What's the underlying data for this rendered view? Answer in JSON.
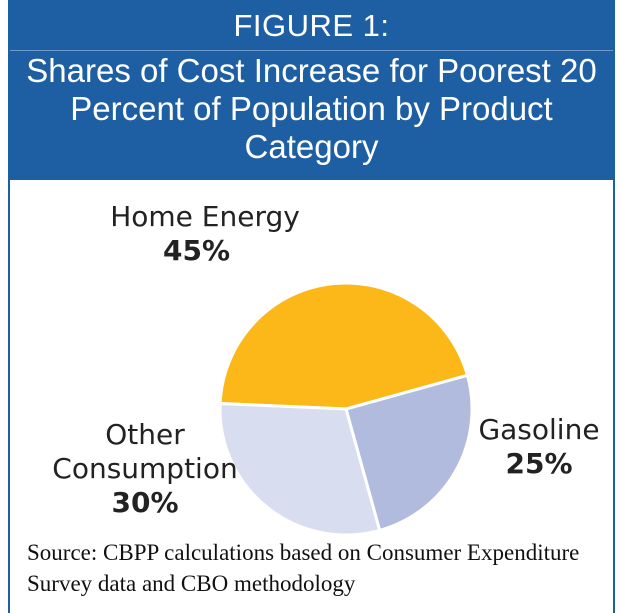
{
  "figure_label": "FIGURE 1:",
  "title": "Shares of Cost Increase for Poorest 20 Percent of Population by Product Category",
  "source": "Source: CBPP calculations based on Consumer Expenditure Survey data and CBO methodology",
  "colors": {
    "header": "#1e5fa3",
    "home_energy": "#fbb818",
    "gasoline": "#b0bbde",
    "other_consumption": "#d9ddf0"
  },
  "chart_data": {
    "type": "pie",
    "title": "Shares of Cost Increase for Poorest 20 Percent of Population by Product Category",
    "slices": [
      {
        "label": "Home Energy",
        "value": 45,
        "display": "45%",
        "color": "#fbb818"
      },
      {
        "label": "Gasoline",
        "value": 25,
        "display": "25%",
        "color": "#b0bbde"
      },
      {
        "label": "Other Consumption",
        "value": 30,
        "display": "30%",
        "color": "#d9ddf0"
      }
    ]
  }
}
